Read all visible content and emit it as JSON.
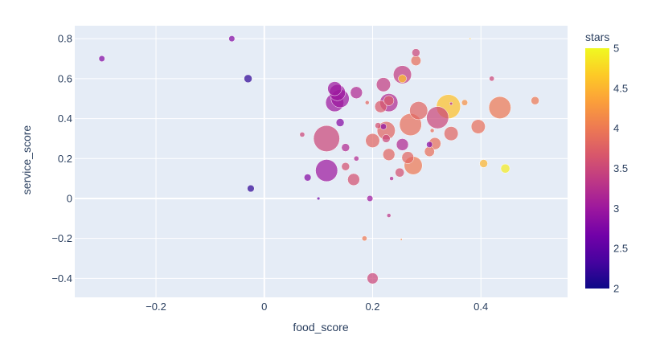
{
  "chart_data": {
    "type": "scatter",
    "xlabel": "food_score",
    "ylabel": "service_score",
    "xlim": [
      -0.35,
      0.56
    ],
    "ylim": [
      -0.495,
      0.865
    ],
    "x_ticks": [
      -0.2,
      0,
      0.2,
      0.4
    ],
    "x_tick_labels": [
      "−0.2",
      "0",
      "0.2",
      "0.4"
    ],
    "y_ticks": [
      -0.4,
      -0.2,
      0,
      0.2,
      0.4,
      0.6,
      0.8
    ],
    "y_tick_labels": [
      "−0.4",
      "−0.2",
      "0",
      "0.2",
      "0.4",
      "0.6",
      "0.8"
    ],
    "grid": true,
    "size_encoding": "marker size varies per point (unlabeled)",
    "colorbar": {
      "title": "stars",
      "range": [
        2,
        5
      ],
      "ticks": [
        2,
        2.5,
        3,
        3.5,
        4,
        4.5,
        5
      ],
      "tick_labels": [
        "2",
        "2.5",
        "3",
        "3.5",
        "4",
        "4.5",
        "5"
      ],
      "colorscale": [
        "#0d0887",
        "#46039f",
        "#7201a8",
        "#9c179e",
        "#bd3786",
        "#d8576b",
        "#ed7953",
        "#fb9f3a",
        "#fdca26",
        "#f0f921"
      ]
    },
    "points": [
      {
        "x": -0.3,
        "y": 0.7,
        "stars": 2.8,
        "size": 3
      },
      {
        "x": -0.06,
        "y": 0.8,
        "stars": 2.8,
        "size": 3
      },
      {
        "x": -0.03,
        "y": 0.6,
        "stars": 2.2,
        "size": 4
      },
      {
        "x": -0.025,
        "y": 0.05,
        "stars": 2.2,
        "size": 3.5
      },
      {
        "x": 0.07,
        "y": 0.32,
        "stars": 3.5,
        "size": 2.5
      },
      {
        "x": 0.08,
        "y": 0.105,
        "stars": 2.8,
        "size": 3.5
      },
      {
        "x": 0.1,
        "y": 0.0,
        "stars": 2.6,
        "size": 1.5
      },
      {
        "x": 0.115,
        "y": 0.3,
        "stars": 3.5,
        "size": 13
      },
      {
        "x": 0.115,
        "y": 0.14,
        "stars": 3.0,
        "size": 11
      },
      {
        "x": 0.13,
        "y": 0.55,
        "stars": 3.0,
        "size": 7
      },
      {
        "x": 0.13,
        "y": 0.48,
        "stars": 3.0,
        "size": 9
      },
      {
        "x": 0.135,
        "y": 0.53,
        "stars": 3.0,
        "size": 8
      },
      {
        "x": 0.14,
        "y": 0.5,
        "stars": 3.0,
        "size": 9
      },
      {
        "x": 0.14,
        "y": 0.38,
        "stars": 2.8,
        "size": 4
      },
      {
        "x": 0.15,
        "y": 0.255,
        "stars": 3.2,
        "size": 4
      },
      {
        "x": 0.15,
        "y": 0.16,
        "stars": 3.6,
        "size": 4
      },
      {
        "x": 0.165,
        "y": 0.095,
        "stars": 3.6,
        "size": 6
      },
      {
        "x": 0.17,
        "y": 0.53,
        "stars": 3.2,
        "size": 6
      },
      {
        "x": 0.17,
        "y": 0.2,
        "stars": 3.2,
        "size": 2.5
      },
      {
        "x": 0.19,
        "y": 0.48,
        "stars": 3.8,
        "size": 2
      },
      {
        "x": 0.195,
        "y": 0.0,
        "stars": 3.0,
        "size": 3
      },
      {
        "x": 0.2,
        "y": 0.29,
        "stars": 3.8,
        "size": 7
      },
      {
        "x": 0.2,
        "y": -0.4,
        "stars": 3.5,
        "size": 5.5
      },
      {
        "x": 0.21,
        "y": 0.365,
        "stars": 3.6,
        "size": 3
      },
      {
        "x": 0.215,
        "y": 0.46,
        "stars": 3.7,
        "size": 6
      },
      {
        "x": 0.22,
        "y": 0.36,
        "stars": 2.9,
        "size": 3
      },
      {
        "x": 0.22,
        "y": 0.57,
        "stars": 3.4,
        "size": 7
      },
      {
        "x": 0.225,
        "y": 0.3,
        "stars": 3.5,
        "size": 4
      },
      {
        "x": 0.225,
        "y": 0.34,
        "stars": 3.8,
        "size": 9
      },
      {
        "x": 0.23,
        "y": 0.22,
        "stars": 3.8,
        "size": 6
      },
      {
        "x": 0.23,
        "y": -0.085,
        "stars": 3.3,
        "size": 2
      },
      {
        "x": 0.23,
        "y": 0.48,
        "stars": 3.2,
        "size": 9
      },
      {
        "x": 0.235,
        "y": 0.1,
        "stars": 3.2,
        "size": 2
      },
      {
        "x": 0.23,
        "y": 0.49,
        "stars": 3.7,
        "size": 5
      },
      {
        "x": 0.185,
        "y": -0.2,
        "stars": 4.0,
        "size": 2.5
      },
      {
        "x": 0.25,
        "y": 0.13,
        "stars": 3.6,
        "size": 4.5
      },
      {
        "x": 0.253,
        "y": -0.205,
        "stars": 4.1,
        "size": 1
      },
      {
        "x": 0.255,
        "y": 0.27,
        "stars": 3.2,
        "size": 6
      },
      {
        "x": 0.255,
        "y": 0.62,
        "stars": 3.4,
        "size": 9
      },
      {
        "x": 0.255,
        "y": 0.6,
        "stars": 4.6,
        "size": 4
      },
      {
        "x": 0.265,
        "y": 0.205,
        "stars": 3.8,
        "size": 6
      },
      {
        "x": 0.27,
        "y": 0.37,
        "stars": 3.9,
        "size": 11
      },
      {
        "x": 0.275,
        "y": 0.165,
        "stars": 4.0,
        "size": 9
      },
      {
        "x": 0.28,
        "y": 0.69,
        "stars": 3.9,
        "size": 5
      },
      {
        "x": 0.28,
        "y": 0.73,
        "stars": 3.5,
        "size": 4
      },
      {
        "x": 0.285,
        "y": 0.44,
        "stars": 3.8,
        "size": 9
      },
      {
        "x": 0.305,
        "y": 0.235,
        "stars": 3.9,
        "size": 5
      },
      {
        "x": 0.305,
        "y": 0.27,
        "stars": 2.8,
        "size": 3
      },
      {
        "x": 0.31,
        "y": 0.34,
        "stars": 3.9,
        "size": 2
      },
      {
        "x": 0.315,
        "y": 0.275,
        "stars": 3.9,
        "size": 6
      },
      {
        "x": 0.32,
        "y": 0.405,
        "stars": 3.5,
        "size": 11
      },
      {
        "x": 0.34,
        "y": 0.46,
        "stars": 4.6,
        "size": 12
      },
      {
        "x": 0.345,
        "y": 0.475,
        "stars": 3.2,
        "size": 1.5
      },
      {
        "x": 0.345,
        "y": 0.325,
        "stars": 3.8,
        "size": 7
      },
      {
        "x": 0.37,
        "y": 0.48,
        "stars": 4.2,
        "size": 3
      },
      {
        "x": 0.38,
        "y": 0.8,
        "stars": 4.6,
        "size": 0.8
      },
      {
        "x": 0.395,
        "y": 0.36,
        "stars": 3.9,
        "size": 7
      },
      {
        "x": 0.405,
        "y": 0.175,
        "stars": 4.5,
        "size": 4
      },
      {
        "x": 0.42,
        "y": 0.6,
        "stars": 3.5,
        "size": 2.5
      },
      {
        "x": 0.435,
        "y": 0.455,
        "stars": 4.0,
        "size": 11
      },
      {
        "x": 0.445,
        "y": 0.15,
        "stars": 4.9,
        "size": 4.5
      },
      {
        "x": 0.5,
        "y": 0.49,
        "stars": 4.0,
        "size": 4
      }
    ]
  }
}
